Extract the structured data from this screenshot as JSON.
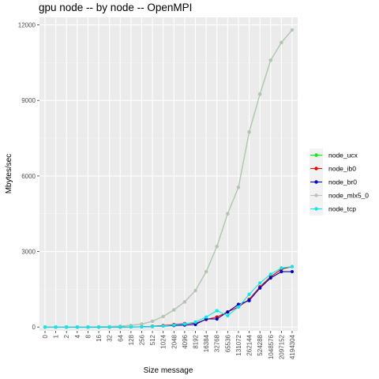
{
  "chart_data": {
    "type": "line",
    "title": "gpu node -- by node -- OpenMPI",
    "xlabel": "Size message",
    "ylabel": "Mbytes/sec",
    "categories": [
      "0",
      "1",
      "2",
      "4",
      "8",
      "16",
      "32",
      "64",
      "128",
      "256",
      "512",
      "1024",
      "2048",
      "4096",
      "8192",
      "16384",
      "32768",
      "65536",
      "131072",
      "262144",
      "524288",
      "1048576",
      "2097152",
      "4194304"
    ],
    "ylim": [
      -150,
      12300
    ],
    "yticks": [
      0,
      3000,
      6000,
      9000,
      12000
    ],
    "grid": true,
    "legend_position": "right",
    "series": [
      {
        "name": "node_ucx",
        "color": "#00ee00",
        "values": [
          2,
          2,
          3,
          4,
          6,
          10,
          18,
          35,
          65,
          120,
          230,
          420,
          680,
          1000,
          1450,
          2200,
          3200,
          4500,
          5550,
          7750,
          9250,
          10600,
          11300,
          11800
        ]
      },
      {
        "name": "node_ib0",
        "color": "#ee0000",
        "values": [
          0,
          0,
          0,
          0,
          0,
          0,
          0,
          0,
          5,
          10,
          30,
          60,
          100,
          140,
          150,
          300,
          400,
          600,
          800,
          1100,
          1600,
          2000,
          2300,
          2400
        ]
      },
      {
        "name": "node_br0",
        "color": "#0000cd",
        "values": [
          0,
          0,
          0,
          0,
          0,
          0,
          0,
          0,
          5,
          10,
          20,
          40,
          60,
          80,
          100,
          320,
          320,
          600,
          900,
          1050,
          1550,
          1950,
          2200,
          2200
        ]
      },
      {
        "name": "node_mlx5_0",
        "color": "#bebebe",
        "values": [
          2,
          2,
          3,
          4,
          6,
          10,
          18,
          35,
          65,
          120,
          230,
          420,
          680,
          1000,
          1450,
          2200,
          3200,
          4500,
          5550,
          7750,
          9250,
          10600,
          11300,
          11800
        ]
      },
      {
        "name": "node_tcp",
        "color": "#00eeee",
        "values": [
          0,
          0,
          0,
          0,
          0,
          0,
          0,
          0,
          5,
          10,
          20,
          40,
          80,
          120,
          200,
          400,
          650,
          450,
          800,
          1300,
          1750,
          2100,
          2350,
          2400
        ]
      }
    ]
  }
}
